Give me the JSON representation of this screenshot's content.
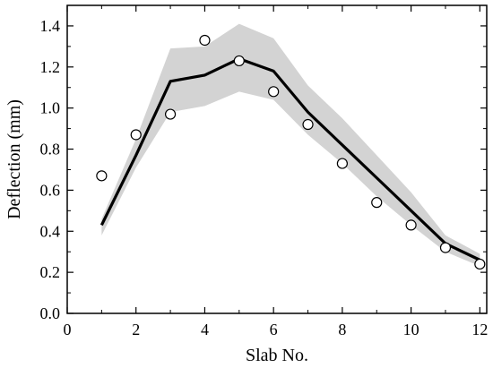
{
  "chart_data": {
    "type": "line",
    "title": "",
    "xlabel": "Slab No.",
    "ylabel": "Deflection (mm)",
    "xlim": [
      0,
      12.2
    ],
    "ylim": [
      0,
      1.5
    ],
    "x_ticks": [
      0,
      2,
      4,
      6,
      8,
      10,
      12
    ],
    "y_ticks": [
      0.0,
      0.2,
      0.4,
      0.6,
      0.8,
      1.0,
      1.2,
      1.4
    ],
    "x_tick_labels": [
      "0",
      "2",
      "4",
      "6",
      "8",
      "10",
      "12"
    ],
    "y_tick_labels": [
      "0.0",
      "0.2",
      "0.4",
      "0.6",
      "0.8",
      "1.0",
      "1.2",
      "1.4"
    ],
    "grid": false,
    "legend": "none",
    "series": [
      {
        "kind": "line",
        "color": "#000000",
        "x": [
          1,
          2,
          3,
          4,
          5,
          6,
          7,
          8,
          9,
          10,
          11,
          12
        ],
        "values": [
          0.43,
          0.77,
          1.13,
          1.16,
          1.24,
          1.18,
          0.98,
          0.82,
          0.66,
          0.5,
          0.34,
          0.26
        ]
      },
      {
        "kind": "band",
        "color": "#d3d3d3",
        "x": [
          1,
          2,
          3,
          4,
          5,
          6,
          7,
          8,
          9,
          10,
          11,
          12
        ],
        "upper": [
          0.46,
          0.85,
          1.29,
          1.3,
          1.41,
          1.34,
          1.11,
          0.95,
          0.77,
          0.59,
          0.38,
          0.29
        ],
        "lower": [
          0.38,
          0.71,
          0.98,
          1.01,
          1.08,
          1.04,
          0.87,
          0.73,
          0.57,
          0.43,
          0.3,
          0.23
        ]
      },
      {
        "kind": "scatter",
        "marker": "open-circle",
        "x": [
          1,
          2,
          3,
          4,
          5,
          6,
          7,
          8,
          9,
          10,
          11,
          12
        ],
        "values": [
          0.67,
          0.87,
          0.97,
          1.33,
          1.23,
          1.08,
          0.92,
          0.73,
          0.54,
          0.43,
          0.32,
          0.24
        ]
      }
    ]
  }
}
